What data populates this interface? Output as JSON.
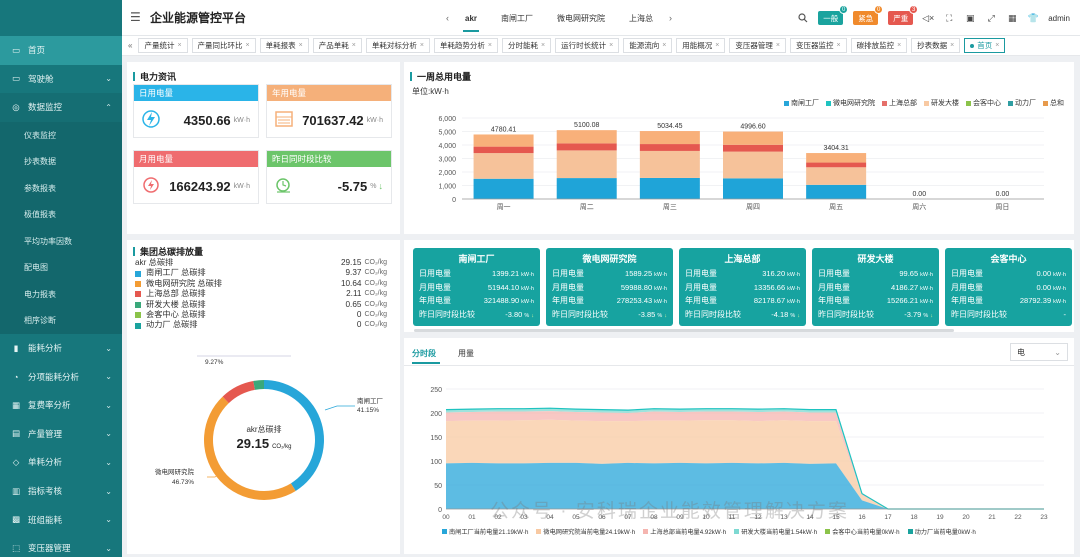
{
  "app": {
    "title": "企业能源管控平台",
    "user": "admin"
  },
  "header": {
    "site_tabs": [
      "akr",
      "南闸工厂",
      "微电网研究院",
      "上海总"
    ],
    "alarms": [
      {
        "label": "一般",
        "count": "0",
        "color": "#1aa39e",
        "badge": "#1aa39e"
      },
      {
        "label": "紧急",
        "count": "0",
        "color": "#f08a2c",
        "badge": "#f08a2c"
      },
      {
        "label": "严重",
        "count": "3",
        "color": "#e5584f",
        "badge": "#e5584f"
      }
    ]
  },
  "sidebar": {
    "items": [
      {
        "label": "首页",
        "icon": "home-icon",
        "active": true,
        "chevron": ""
      },
      {
        "label": "驾驶舱",
        "icon": "monitor-icon",
        "chevron": "⌄"
      },
      {
        "label": "数据监控",
        "icon": "data-monitor-icon",
        "chevron": "⌃",
        "open": true
      }
    ],
    "subitems": [
      "仪表监控",
      "抄表数据",
      "参数报表",
      "极值报表",
      "平均功率因数",
      "配电图",
      "电力报表",
      "相序诊断"
    ],
    "items2": [
      {
        "label": "能耗分析",
        "icon": "bar-chart-icon",
        "chevron": "⌄"
      },
      {
        "label": "分项能耗分析",
        "icon": "split-icon",
        "chevron": "⌄"
      },
      {
        "label": "复费率分析",
        "icon": "rate-icon",
        "chevron": "⌄"
      },
      {
        "label": "产量管理",
        "icon": "production-icon",
        "chevron": "⌄"
      },
      {
        "label": "单耗分析",
        "icon": "unit-consumption-icon",
        "chevron": "⌄"
      },
      {
        "label": "指标考核",
        "icon": "kpi-icon",
        "chevron": "⌄"
      },
      {
        "label": "班组能耗",
        "icon": "team-icon",
        "chevron": "⌄"
      },
      {
        "label": "变压器管理",
        "icon": "transformer-icon",
        "chevron": "⌄"
      }
    ]
  },
  "page_tabs": [
    "产量统计",
    "产量同比环比",
    "单耗报表",
    "产品单耗",
    "单耗对标分析",
    "单耗趋势分析",
    "分时能耗",
    "运行时长统计",
    "能源流向",
    "用能概况",
    "变压器管理",
    "变压器监控",
    "碳排放监控",
    "抄表数据",
    "首页"
  ],
  "power_info": {
    "title": "电力资讯",
    "kpis": [
      {
        "label": "日用电量",
        "value": "4350.66",
        "unit": "kW·h",
        "color": "#2ab4e8",
        "icon": "lightning-icon"
      },
      {
        "label": "年用电量",
        "value": "701637.42",
        "unit": "kW·h",
        "color": "#f5b07a",
        "icon": "calendar-grid-icon"
      },
      {
        "label": "月用电量",
        "value": "166243.92",
        "unit": "kW·h",
        "color": "#ef6c6f",
        "icon": "lightning-circle-icon"
      },
      {
        "label": "昨日同时段比较",
        "value": "-5.75",
        "unit": "%",
        "color": "#6cc56a",
        "icon": "clock-icon",
        "trend": "↓"
      }
    ]
  },
  "weekly": {
    "title": "一周总用电量",
    "unit": "单位:kW·h",
    "legend": [
      "南闸工厂",
      "微电网研究院",
      "上海总部",
      "研发大楼",
      "会客中心",
      "动力厂",
      "总和"
    ],
    "legend_colors": [
      "#27a6d9",
      "#1ec3c0",
      "#e56f6a",
      "#f8c9a2",
      "#8bc34a",
      "#2f9ea2",
      "#e79a4c"
    ]
  },
  "carbon": {
    "title": "集团总碳排放量",
    "rows": [
      {
        "label": "akr 总碳排",
        "value": "29.15",
        "unit": "CO₂/kg",
        "color": ""
      },
      {
        "label": "南闸工厂 总碳排",
        "value": "9.37",
        "unit": "CO₂/kg",
        "color": "#27a6d9"
      },
      {
        "label": "微电网研究院 总碳排",
        "value": "10.64",
        "unit": "CO₂/kg",
        "color": "#f39c34"
      },
      {
        "label": "上海总部 总碳排",
        "value": "2.11",
        "unit": "CO₂/kg",
        "color": "#e5584f"
      },
      {
        "label": "研发大楼 总碳排",
        "value": "0.65",
        "unit": "CO₂/kg",
        "color": "#3aa87a"
      },
      {
        "label": "会客中心 总碳排",
        "value": "0",
        "unit": "CO₂/kg",
        "color": "#8bc34a"
      },
      {
        "label": "动力厂 总碳排",
        "value": "0",
        "unit": "CO₂/kg",
        "color": "#1aa39e"
      }
    ],
    "center_label": "akr总碳排",
    "center_value": "29.15",
    "center_unit": "CO₂/kg",
    "outer_labels": [
      {
        "text": "南闸工厂",
        "pct": "41.15%"
      },
      {
        "text": "微电网研究院",
        "pct": "46.73%"
      },
      {
        "text": "",
        "pct": "9.27%"
      }
    ]
  },
  "site_cards": [
    {
      "name": "南闸工厂",
      "day": "1399.21",
      "month": "51944.10",
      "year": "321488.90",
      "cmp": "-3.80",
      "cmp_arrow": "↓"
    },
    {
      "name": "微电网研究院",
      "day": "1589.25",
      "month": "59988.80",
      "year": "278253.43",
      "cmp": "-3.85",
      "cmp_arrow": "↓"
    },
    {
      "name": "上海总部",
      "day": "316.20",
      "month": "13356.66",
      "year": "82178.67",
      "cmp": "-4.18",
      "cmp_arrow": "↓"
    },
    {
      "name": "研发大楼",
      "day": "99.65",
      "month": "4186.27",
      "year": "15266.21",
      "cmp": "-3.79",
      "cmp_arrow": "↓"
    },
    {
      "name": "会客中心",
      "day": "0.00",
      "month": "0.00",
      "year": "28792.39",
      "cmp": "-",
      "cmp_arrow": ""
    }
  ],
  "site_card_labels": {
    "day": "日用电量",
    "month": "月用电量",
    "year": "年用电量",
    "cmp": "昨日同时段比较",
    "unit": "kW·h",
    "pct": "%"
  },
  "area": {
    "tabs": [
      "分时段",
      "用量"
    ],
    "select": "电",
    "legend": [
      "南闸工厂当前电量21.19kW·h",
      "微电网研究院当前电量24.19kW·h",
      "上海总部当前电量4.92kW·h",
      "研发大楼当前电量1.54kW·h",
      "会客中心当前电量0kW·h",
      "动力厂当前电量0kW·h"
    ],
    "x_ticks": [
      "00",
      "01",
      "02",
      "03",
      "04",
      "05",
      "06",
      "07",
      "08",
      "09",
      "10",
      "11",
      "12",
      "13",
      "14",
      "15",
      "16",
      "17",
      "18",
      "19",
      "20",
      "21",
      "22",
      "23"
    ]
  },
  "watermark": "公众号 · 安科瑞企业能效管理解决方案",
  "chart_data": [
    {
      "type": "bar",
      "title": "一周总用电量",
      "ylabel": "单位:kW·h",
      "categories": [
        "周一",
        "周二",
        "周三",
        "周四",
        "周五",
        "周六",
        "周日"
      ],
      "totals": [
        4780.41,
        5100.08,
        5034.45,
        4996.6,
        3404.31,
        0.0,
        0.0
      ],
      "ylim": [
        0,
        6000
      ],
      "yticks": [
        "0",
        "1,000",
        "2,000",
        "3,000",
        "4,000",
        "5,000",
        "6,000"
      ],
      "series": [
        {
          "name": "南闸工厂",
          "color": "#1fa4d8",
          "values": [
            1500,
            1550,
            1560,
            1530,
            1050,
            0,
            0
          ]
        },
        {
          "name": "微电网研究院",
          "color": "#f6c29a",
          "values": [
            1900,
            2050,
            2000,
            1980,
            1300,
            0,
            0
          ]
        },
        {
          "name": "上海总部",
          "color": "#e5584f",
          "values": [
            480,
            520,
            510,
            505,
            350,
            0,
            0
          ]
        },
        {
          "name": "研发大楼",
          "color": "#f8b07a",
          "values": [
            900,
            980,
            964,
            981,
            704,
            0,
            0
          ]
        }
      ]
    },
    {
      "type": "pie",
      "title": "集团总碳排放量",
      "labels": [
        "南闸工厂",
        "微电网研究院",
        "上海总部",
        "研发大楼"
      ],
      "values": [
        41.15,
        46.73,
        9.27,
        2.85
      ],
      "colors": [
        "#27a6d9",
        "#f39c34",
        "#e5584f",
        "#3aa87a"
      ]
    },
    {
      "type": "area",
      "ylim": [
        0,
        250
      ],
      "yticks": [
        "0",
        "50",
        "100",
        "150",
        "200",
        "250"
      ],
      "x": [
        "00",
        "01",
        "02",
        "03",
        "04",
        "05",
        "06",
        "07",
        "08",
        "09",
        "10",
        "11",
        "12",
        "13",
        "14",
        "15",
        "16",
        "17",
        "18",
        "19",
        "20",
        "21",
        "22",
        "23"
      ],
      "series": [
        {
          "name": "南闸工厂",
          "color": "#27a6d9",
          "values": [
            95,
            96,
            95,
            95,
            96,
            96,
            94,
            96,
            95,
            96,
            95,
            96,
            95,
            96,
            94,
            95,
            18,
            0,
            0,
            0,
            0,
            0,
            0,
            0
          ]
        },
        {
          "name": "微电网研究院",
          "color": "#f8c9a2",
          "values": [
            88,
            88,
            89,
            90,
            90,
            88,
            89,
            87,
            89,
            88,
            90,
            89,
            88,
            89,
            89,
            88,
            10,
            0,
            0,
            0,
            0,
            0,
            0,
            0
          ]
        },
        {
          "name": "上海总部",
          "color": "#f5b5b0",
          "values": [
            18,
            18,
            19,
            18,
            18,
            18,
            18,
            17,
            19,
            18,
            18,
            18,
            19,
            18,
            18,
            18,
            3,
            0,
            0,
            0,
            0,
            0,
            0,
            0
          ]
        },
        {
          "name": "研发大楼",
          "color": "#7ed9d2",
          "values": [
            6,
            6,
            6,
            6,
            6,
            6,
            6,
            6,
            6,
            6,
            6,
            6,
            6,
            6,
            6,
            6,
            1,
            0,
            0,
            0,
            0,
            0,
            0,
            0
          ]
        }
      ]
    }
  ]
}
